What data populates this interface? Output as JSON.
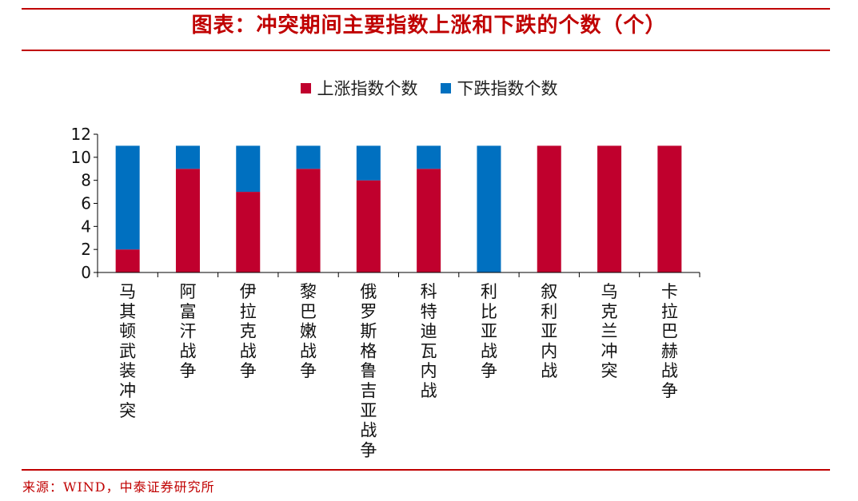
{
  "header": {
    "title": "图表：冲突期间主要指数上涨和下跌的个数（个）"
  },
  "footer": {
    "source": "来源：WIND，中泰证券研究所"
  },
  "colors": {
    "accent": "#c00000",
    "rise": "#c0002d",
    "fall": "#0070c0"
  },
  "chart_data": {
    "type": "bar",
    "stacked": true,
    "title": "冲突期间主要指数上涨和下跌的个数（个）",
    "categories": [
      "马其顿武装冲突",
      "阿富汗战争",
      "伊拉克战争",
      "黎巴嫩战争",
      "俄罗斯格鲁吉亚战争",
      "科特迪瓦内战",
      "利比亚战争",
      "叙利亚内战",
      "乌克兰冲突",
      "卡拉巴赫战争"
    ],
    "series": [
      {
        "name": "上涨指数个数",
        "color": "#c0002d",
        "values": [
          2,
          9,
          7,
          9,
          8,
          9,
          0,
          11,
          11,
          11
        ]
      },
      {
        "name": "下跌指数个数",
        "color": "#0070c0",
        "values": [
          9,
          2,
          4,
          2,
          3,
          2,
          11,
          0,
          0,
          0
        ]
      }
    ],
    "ylim": [
      0,
      12
    ],
    "yticks": [
      0,
      2,
      4,
      6,
      8,
      10,
      12
    ],
    "xlabel": "",
    "ylabel": "",
    "legend": "top-center"
  }
}
